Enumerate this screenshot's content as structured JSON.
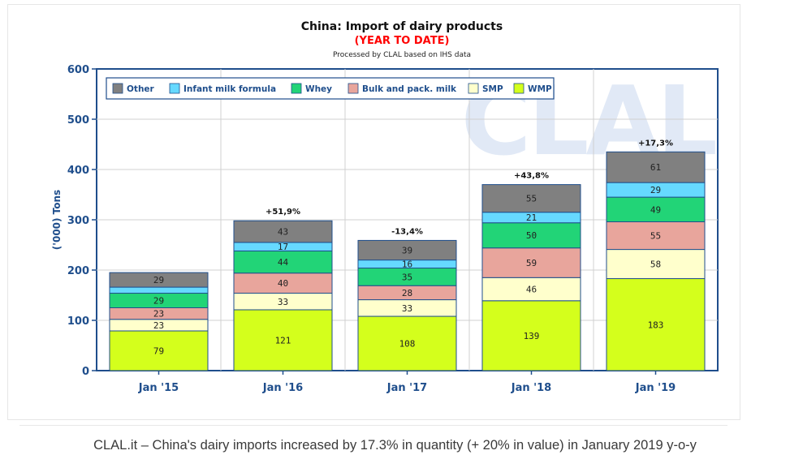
{
  "chart_data": {
    "type": "bar",
    "stacked": true,
    "title": "China: Import of dairy products",
    "subtitle": "(YEAR TO DATE)",
    "source_note": "Processed by CLAL based on IHS data",
    "watermark": "CLAL",
    "ylabel": "('000) Tons",
    "xlabel": "",
    "ylim": [
      0,
      600
    ],
    "yticks": [
      0,
      100,
      200,
      300,
      400,
      500,
      600
    ],
    "grid": true,
    "legend_position": "top-left",
    "categories": [
      "Jan '15",
      "Jan '16",
      "Jan '17",
      "Jan '18",
      "Jan '19"
    ],
    "series": [
      {
        "name": "WMP",
        "color": "#d4ff1c",
        "values": [
          79,
          121,
          108,
          139,
          183
        ]
      },
      {
        "name": "SMP",
        "color": "#ffffcc",
        "values": [
          23,
          33,
          33,
          46,
          58
        ]
      },
      {
        "name": "Bulk and pack. milk",
        "color": "#e8a59c",
        "values": [
          23,
          40,
          28,
          59,
          55
        ]
      },
      {
        "name": "Whey",
        "color": "#22d477",
        "values": [
          29,
          44,
          35,
          50,
          49
        ]
      },
      {
        "name": "Infant milk formula",
        "color": "#66d9ff",
        "values": [
          12,
          17,
          16,
          21,
          29
        ]
      },
      {
        "name": "Other",
        "color": "#808080",
        "values": [
          29,
          43,
          39,
          55,
          61
        ]
      }
    ],
    "segment_labels": [
      [
        "79",
        "23",
        "23",
        "29",
        "",
        "29"
      ],
      [
        "121",
        "33",
        "40",
        "44",
        "17",
        "43"
      ],
      [
        "108",
        "33",
        "28",
        "35",
        "16",
        "39"
      ],
      [
        "139",
        "46",
        "59",
        "50",
        "21",
        "55"
      ],
      [
        "183",
        "58",
        "55",
        "49",
        "29",
        "61"
      ]
    ],
    "legend_order": [
      "Other",
      "Infant milk formula",
      "Whey",
      "Bulk and pack. milk",
      "SMP",
      "WMP"
    ],
    "growth_labels": [
      "",
      "+51,9%",
      "-13,4%",
      "+43,8%",
      "+17,3%"
    ]
  },
  "caption": "CLAL.it – China's dairy imports increased by 17.3% in quantity (+ 20% in value) in January 2019 y-o-y"
}
